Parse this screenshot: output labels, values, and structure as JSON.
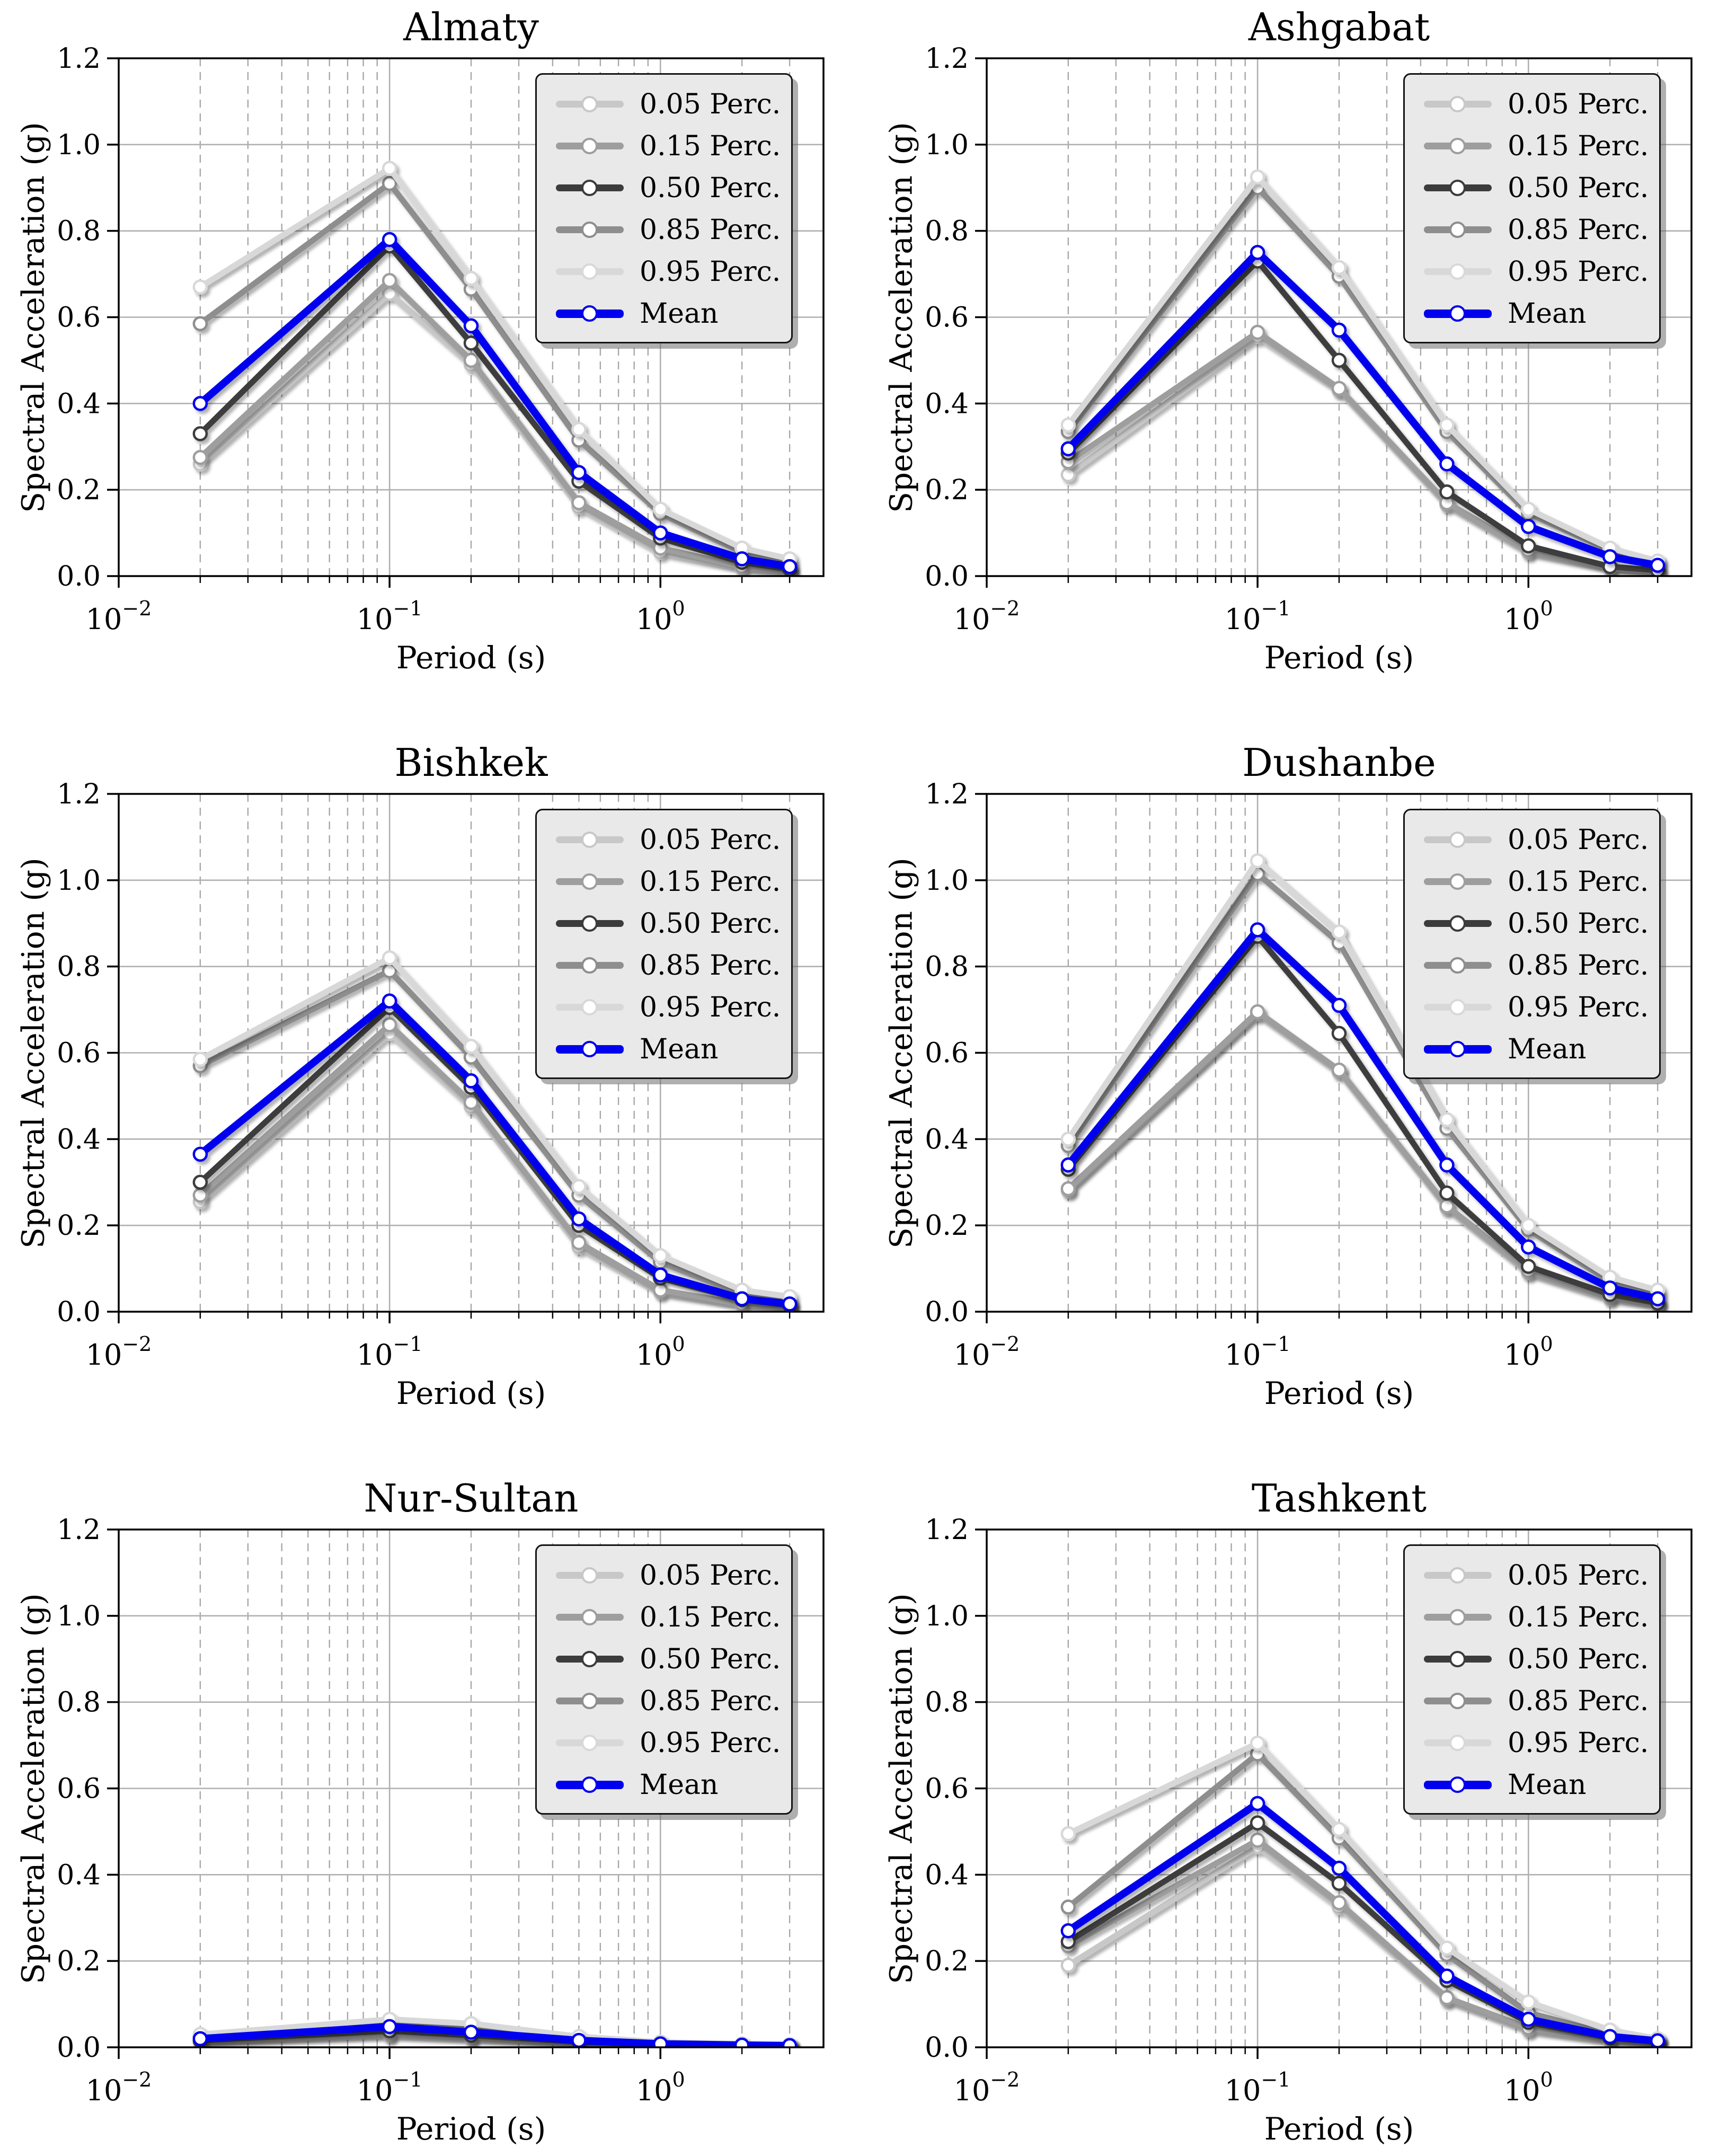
{
  "figure": {
    "background": "#ffffff"
  },
  "axes": {
    "xlabel": "Period (s)",
    "ylabel": "Spectral Acceleration (g)",
    "xscale": "log",
    "xlim": [
      0.01,
      4
    ],
    "ylim": [
      0,
      1.2
    ],
    "yticks": [
      {
        "label": "0.0",
        "value": 0.0
      },
      {
        "label": "0.2",
        "value": 0.2
      },
      {
        "label": "0.4",
        "value": 0.4
      },
      {
        "label": "0.6",
        "value": 0.6
      },
      {
        "label": "0.8",
        "value": 0.8
      },
      {
        "label": "1.0",
        "value": 1.0
      },
      {
        "label": "1.2",
        "value": 1.2
      }
    ],
    "xticks": [
      {
        "base": "10",
        "exp": "−2",
        "value": 0.01
      },
      {
        "base": "10",
        "exp": "−1",
        "value": 0.1
      },
      {
        "base": "10",
        "exp": "0",
        "value": 1
      }
    ],
    "x_major_gridlines": [
      0.1,
      1
    ],
    "x_minor_gridlines": [
      0.02,
      0.03,
      0.04,
      0.05,
      0.06,
      0.07,
      0.08,
      0.09,
      0.2,
      0.3,
      0.4,
      0.5,
      0.6,
      0.7,
      0.8,
      0.9,
      2,
      3
    ],
    "grid": true,
    "colors": {
      "major_grid": "#b0b0b0",
      "minor_grid": "#a8a8a8",
      "spine": "#000000"
    }
  },
  "legend": {
    "position": "upper right",
    "background": "#e9e9e9",
    "entries": [
      {
        "label": "0.05 Perc.",
        "color": "#c8c8c8"
      },
      {
        "label": "0.15 Perc.",
        "color": "#9e9e9e"
      },
      {
        "label": "0.50 Perc.",
        "color": "#3c3c3c"
      },
      {
        "label": "0.85 Perc.",
        "color": "#8e8e8e"
      },
      {
        "label": "0.95 Perc.",
        "color": "#d8d8d8"
      },
      {
        "label": "Mean",
        "color": "#0000ee"
      }
    ]
  },
  "chart_data": [
    {
      "type": "line",
      "title": "Almaty",
      "xlabel": "Period (s)",
      "ylabel": "Spectral Acceleration (g)",
      "x": [
        0.02,
        0.1,
        0.2,
        0.5,
        1,
        2,
        3
      ],
      "series": [
        {
          "name": "0.05 Perc.",
          "values": [
            0.26,
            0.655,
            0.49,
            0.16,
            0.055,
            0.018,
            0.01
          ]
        },
        {
          "name": "0.15 Perc.",
          "values": [
            0.275,
            0.685,
            0.5,
            0.17,
            0.065,
            0.022,
            0.012
          ]
        },
        {
          "name": "0.50 Perc.",
          "values": [
            0.33,
            0.765,
            0.54,
            0.22,
            0.088,
            0.032,
            0.016
          ]
        },
        {
          "name": "0.85 Perc.",
          "values": [
            0.585,
            0.91,
            0.665,
            0.315,
            0.145,
            0.055,
            0.028
          ]
        },
        {
          "name": "0.95 Perc.",
          "values": [
            0.67,
            0.945,
            0.69,
            0.34,
            0.155,
            0.065,
            0.04
          ]
        },
        {
          "name": "Mean",
          "values": [
            0.4,
            0.78,
            0.58,
            0.24,
            0.1,
            0.04,
            0.022
          ]
        }
      ]
    },
    {
      "type": "line",
      "title": "Ashgabat",
      "xlabel": "Period (s)",
      "ylabel": "Spectral Acceleration (g)",
      "x": [
        0.02,
        0.1,
        0.2,
        0.5,
        1,
        2,
        3
      ],
      "series": [
        {
          "name": "0.05 Perc.",
          "values": [
            0.235,
            0.555,
            0.43,
            0.165,
            0.055,
            0.018,
            0.01
          ]
        },
        {
          "name": "0.15 Perc.",
          "values": [
            0.265,
            0.565,
            0.435,
            0.17,
            0.06,
            0.02,
            0.012
          ]
        },
        {
          "name": "0.50 Perc.",
          "values": [
            0.285,
            0.73,
            0.5,
            0.195,
            0.07,
            0.022,
            0.013
          ]
        },
        {
          "name": "0.85 Perc.",
          "values": [
            0.335,
            0.9,
            0.695,
            0.335,
            0.145,
            0.06,
            0.032
          ]
        },
        {
          "name": "0.95 Perc.",
          "values": [
            0.35,
            0.925,
            0.715,
            0.35,
            0.155,
            0.065,
            0.035
          ]
        },
        {
          "name": "Mean",
          "values": [
            0.295,
            0.75,
            0.57,
            0.26,
            0.115,
            0.045,
            0.025
          ]
        }
      ]
    },
    {
      "type": "line",
      "title": "Bishkek",
      "xlabel": "Period (s)",
      "ylabel": "Spectral Acceleration (g)",
      "x": [
        0.02,
        0.1,
        0.2,
        0.5,
        1,
        2,
        3
      ],
      "series": [
        {
          "name": "0.05 Perc.",
          "values": [
            0.255,
            0.645,
            0.475,
            0.15,
            0.045,
            0.015,
            0.01
          ]
        },
        {
          "name": "0.15 Perc.",
          "values": [
            0.27,
            0.665,
            0.485,
            0.16,
            0.05,
            0.018,
            0.012
          ]
        },
        {
          "name": "0.50 Perc.",
          "values": [
            0.3,
            0.705,
            0.52,
            0.2,
            0.078,
            0.028,
            0.015
          ]
        },
        {
          "name": "0.85 Perc.",
          "values": [
            0.57,
            0.79,
            0.59,
            0.27,
            0.115,
            0.04,
            0.022
          ]
        },
        {
          "name": "0.95 Perc.",
          "values": [
            0.585,
            0.82,
            0.615,
            0.29,
            0.13,
            0.05,
            0.035
          ]
        },
        {
          "name": "Mean",
          "values": [
            0.365,
            0.72,
            0.535,
            0.215,
            0.085,
            0.03,
            0.018
          ]
        }
      ]
    },
    {
      "type": "line",
      "title": "Dushanbe",
      "xlabel": "Period (s)",
      "ylabel": "Spectral Acceleration (g)",
      "x": [
        0.02,
        0.1,
        0.2,
        0.5,
        1,
        2,
        3
      ],
      "series": [
        {
          "name": "0.05 Perc.",
          "values": [
            0.28,
            0.69,
            0.555,
            0.24,
            0.09,
            0.03,
            0.015
          ]
        },
        {
          "name": "0.15 Perc.",
          "values": [
            0.285,
            0.695,
            0.56,
            0.245,
            0.095,
            0.035,
            0.018
          ]
        },
        {
          "name": "0.50 Perc.",
          "values": [
            0.33,
            0.87,
            0.645,
            0.275,
            0.105,
            0.04,
            0.02
          ]
        },
        {
          "name": "0.85 Perc.",
          "values": [
            0.385,
            1.015,
            0.855,
            0.425,
            0.19,
            0.07,
            0.04
          ]
        },
        {
          "name": "0.95 Perc.",
          "values": [
            0.4,
            1.045,
            0.88,
            0.445,
            0.2,
            0.08,
            0.05
          ]
        },
        {
          "name": "Mean",
          "values": [
            0.34,
            0.885,
            0.71,
            0.34,
            0.15,
            0.055,
            0.03
          ]
        }
      ]
    },
    {
      "type": "line",
      "title": "Nur-Sultan",
      "xlabel": "Period (s)",
      "ylabel": "Spectral Acceleration (g)",
      "x": [
        0.02,
        0.1,
        0.2,
        0.5,
        1,
        2,
        3
      ],
      "series": [
        {
          "name": "0.05 Perc.",
          "values": [
            0.012,
            0.028,
            0.02,
            0.009,
            0.004,
            0.003,
            0.002
          ]
        },
        {
          "name": "0.15 Perc.",
          "values": [
            0.014,
            0.032,
            0.024,
            0.011,
            0.005,
            0.003,
            0.002
          ]
        },
        {
          "name": "0.50 Perc.",
          "values": [
            0.016,
            0.038,
            0.028,
            0.013,
            0.006,
            0.004,
            0.003
          ]
        },
        {
          "name": "0.85 Perc.",
          "values": [
            0.026,
            0.055,
            0.045,
            0.02,
            0.009,
            0.006,
            0.004
          ]
        },
        {
          "name": "0.95 Perc.",
          "values": [
            0.03,
            0.065,
            0.055,
            0.025,
            0.012,
            0.008,
            0.006
          ]
        },
        {
          "name": "Mean",
          "values": [
            0.02,
            0.048,
            0.035,
            0.016,
            0.008,
            0.005,
            0.004
          ]
        }
      ]
    },
    {
      "type": "line",
      "title": "Tashkent",
      "xlabel": "Period (s)",
      "ylabel": "Spectral Acceleration (g)",
      "x": [
        0.02,
        0.1,
        0.2,
        0.5,
        1,
        2,
        3
      ],
      "series": [
        {
          "name": "0.05 Perc.",
          "values": [
            0.19,
            0.465,
            0.325,
            0.11,
            0.04,
            0.015,
            0.01
          ]
        },
        {
          "name": "0.15 Perc.",
          "values": [
            0.235,
            0.48,
            0.335,
            0.115,
            0.045,
            0.018,
            0.012
          ]
        },
        {
          "name": "0.50 Perc.",
          "values": [
            0.245,
            0.52,
            0.38,
            0.155,
            0.058,
            0.022,
            0.013
          ]
        },
        {
          "name": "0.85 Perc.",
          "values": [
            0.325,
            0.68,
            0.485,
            0.215,
            0.08,
            0.03,
            0.016
          ]
        },
        {
          "name": "0.95 Perc.",
          "values": [
            0.495,
            0.705,
            0.505,
            0.23,
            0.105,
            0.04,
            0.02
          ]
        },
        {
          "name": "Mean",
          "values": [
            0.27,
            0.565,
            0.415,
            0.165,
            0.065,
            0.025,
            0.015
          ]
        }
      ]
    }
  ]
}
